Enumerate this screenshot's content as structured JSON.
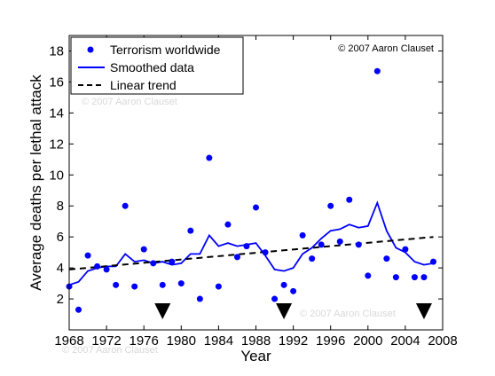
{
  "chart_data": {
    "type": "scatter",
    "xlabel": "Year",
    "ylabel": "Average deaths per lethal attack",
    "xlim": [
      1968,
      2008
    ],
    "ylim": [
      0,
      19
    ],
    "xticks": [
      1968,
      1972,
      1976,
      1980,
      1984,
      1988,
      1992,
      1996,
      2000,
      2004,
      2008
    ],
    "yticks": [
      2,
      4,
      6,
      8,
      10,
      12,
      14,
      16,
      18
    ],
    "legend_position": "top-left",
    "copyright": "© 2007 Aaron Clauset",
    "watermarks": [
      "© 2007 Aaron Clauset",
      "© 2007 Aaron Clauset",
      "© 2007 Aaron Clauset"
    ],
    "series": [
      {
        "name": "Terrorism worldwide",
        "kind": "points",
        "color": "#0000ff",
        "x": [
          1968,
          1969,
          1970,
          1971,
          1972,
          1973,
          1974,
          1975,
          1976,
          1977,
          1978,
          1979,
          1980,
          1981,
          1982,
          1983,
          1984,
          1985,
          1986,
          1987,
          1988,
          1989,
          1990,
          1991,
          1992,
          1993,
          1994,
          1995,
          1996,
          1997,
          1998,
          1999,
          2000,
          2001,
          2002,
          2003,
          2004,
          2005,
          2006,
          2007
        ],
        "y": [
          2.8,
          1.3,
          4.8,
          4.1,
          3.9,
          2.9,
          8.0,
          2.8,
          5.2,
          4.3,
          2.9,
          4.4,
          3.0,
          6.4,
          2.0,
          11.1,
          2.8,
          6.8,
          4.7,
          5.4,
          7.9,
          5.0,
          2.0,
          2.9,
          2.5,
          6.1,
          4.6,
          5.5,
          8.0,
          5.7,
          8.4,
          5.5,
          3.5,
          16.7,
          4.6,
          3.4,
          5.2,
          3.4,
          3.4,
          4.4
        ]
      },
      {
        "name": "Smoothed data",
        "kind": "line",
        "color": "#0000ff",
        "x": [
          1968,
          1969,
          1970,
          1971,
          1972,
          1973,
          1974,
          1975,
          1976,
          1977,
          1978,
          1979,
          1980,
          1981,
          1982,
          1983,
          1984,
          1985,
          1986,
          1987,
          1988,
          1989,
          1990,
          1991,
          1992,
          1993,
          1994,
          1995,
          1996,
          1997,
          1998,
          1999,
          2000,
          2001,
          2002,
          2003,
          2004,
          2005,
          2006,
          2007
        ],
        "y": [
          2.9,
          3.1,
          3.8,
          4.0,
          4.1,
          4.1,
          4.9,
          4.4,
          4.5,
          4.3,
          4.4,
          4.2,
          4.3,
          4.9,
          4.9,
          6.1,
          5.4,
          5.6,
          5.4,
          5.5,
          5.6,
          4.8,
          3.9,
          3.8,
          4.0,
          4.9,
          5.3,
          5.9,
          6.4,
          6.5,
          6.8,
          6.6,
          6.7,
          8.2,
          6.4,
          5.3,
          5.0,
          4.4,
          4.2,
          4.3
        ]
      },
      {
        "name": "Linear trend",
        "kind": "dashed",
        "color": "#000000",
        "x": [
          1968,
          2007
        ],
        "y": [
          3.9,
          6.0
        ]
      }
    ],
    "markers": {
      "shape": "down-triangle",
      "x": [
        1978,
        1991,
        2006
      ],
      "y": 1.2
    }
  }
}
